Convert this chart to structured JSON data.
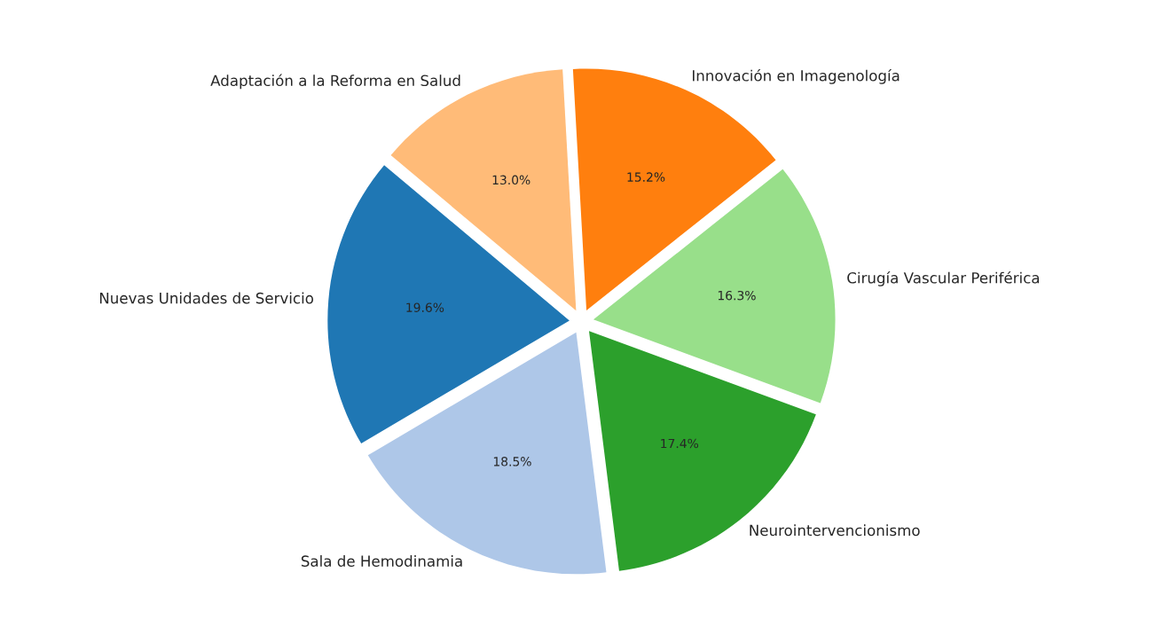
{
  "chart_data": {
    "type": "pie",
    "categories": [
      "Nuevas Unidades de Servicio",
      "Sala de Hemodinamia",
      "Neurointervencionismo",
      "Cirugía Vascular Periférica",
      "Innovación en Imagenología",
      "Adaptación a la Reforma en Salud"
    ],
    "values": [
      19.6,
      18.5,
      17.4,
      16.3,
      15.2,
      13.0
    ],
    "value_labels": [
      "19.6%",
      "18.5%",
      "17.4%",
      "16.3%",
      "15.2%",
      "13.0%"
    ],
    "colors": [
      "#1f77b4",
      "#aec7e8",
      "#2ca02c",
      "#98df8a",
      "#ff7f0e",
      "#ffbb78"
    ]
  }
}
